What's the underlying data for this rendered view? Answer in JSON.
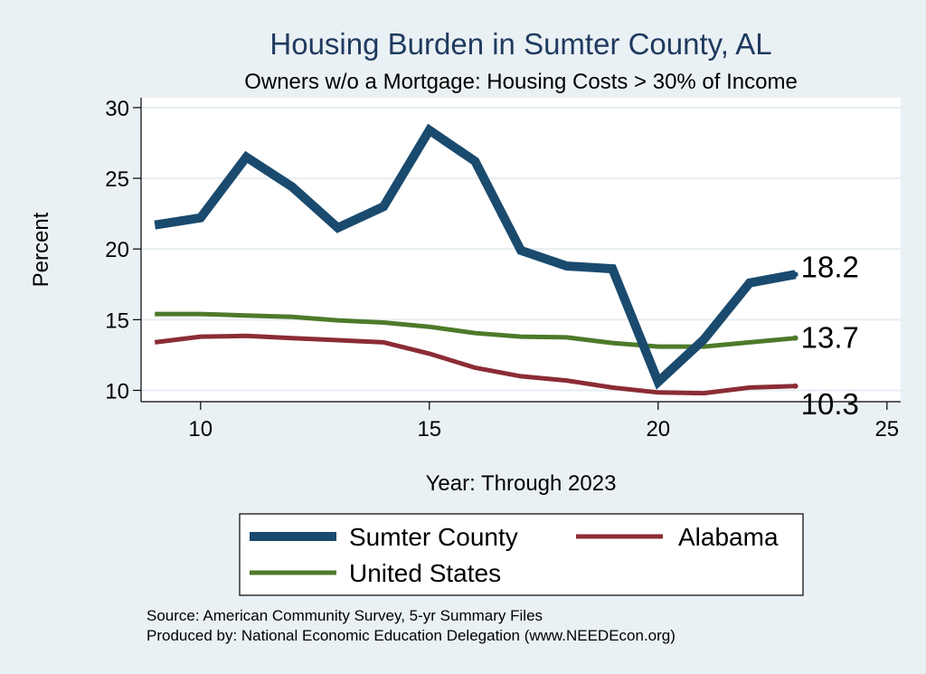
{
  "chart_data": {
    "type": "line",
    "title": "Housing Burden in Sumter County, AL",
    "subtitle": "Owners w/o a Mortgage: Housing Costs > 30% of Income",
    "xlabel": "Year: Through 2023",
    "ylabel": "Percent",
    "xlim": [
      8.7,
      25.3
    ],
    "ylim": [
      9.2,
      30.7
    ],
    "x_ticks": [
      10,
      15,
      20,
      25
    ],
    "y_ticks": [
      10,
      15,
      20,
      25,
      30
    ],
    "grid": true,
    "x": [
      9,
      10,
      11,
      12,
      13,
      14,
      15,
      16,
      17,
      18,
      19,
      20,
      21,
      22,
      23
    ],
    "series": [
      {
        "name": "Sumter County",
        "color": "#1a4a6e",
        "width": "thick",
        "values": [
          21.7,
          22.2,
          26.5,
          24.4,
          21.5,
          23.0,
          28.4,
          26.2,
          19.9,
          18.8,
          18.6,
          10.6,
          13.6,
          17.6,
          18.2
        ],
        "end_label": "18.2"
      },
      {
        "name": "Alabama",
        "color": "#8b2c35",
        "width": "thin",
        "values": [
          13.4,
          13.8,
          13.85,
          13.7,
          13.55,
          13.4,
          12.6,
          11.6,
          11.0,
          10.7,
          10.2,
          9.85,
          9.8,
          10.2,
          10.3
        ],
        "end_label": "10.3"
      },
      {
        "name": "United States",
        "color": "#4d7a2a",
        "width": "thin",
        "values": [
          15.4,
          15.4,
          15.3,
          15.2,
          14.95,
          14.8,
          14.5,
          14.05,
          13.8,
          13.75,
          13.35,
          13.1,
          13.1,
          13.4,
          13.7
        ],
        "end_label": "13.7"
      }
    ],
    "legend": {
      "placement": "bottom",
      "entries": [
        "Sumter County",
        "Alabama",
        "United States"
      ]
    }
  },
  "source": {
    "line1": "Source: American Community Survey, 5-yr Summary Files",
    "line2": "Produced by: National Economic Education Delegation (www.NEEDEcon.org)"
  }
}
